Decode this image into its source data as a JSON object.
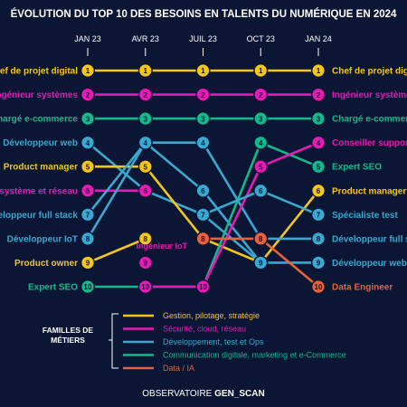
{
  "title": "ÉVOLUTION DU TOP 10 DES BESOINS EN TALENTS DU NUMÉRIQUE EN 2024",
  "footer": {
    "prefix": "OBSERVATOIRE ",
    "brand": "GEN_SCAN"
  },
  "legend": {
    "heading": [
      "FAMILLES DE",
      "MÉTIERS"
    ],
    "items": [
      {
        "family": "gestion",
        "label": "Gestion, pilotage, stratégie"
      },
      {
        "family": "securite",
        "label": "Sécurité, cloud, réseau"
      },
      {
        "family": "dev",
        "label": "Développement, test et Ops"
      },
      {
        "family": "comm",
        "label": "Communication digitale, marketing et e-Commerce"
      },
      {
        "family": "data",
        "label": "Data / IA"
      }
    ]
  },
  "colors": {
    "gestion": "#f5c518",
    "securite": "#e61bb5",
    "dev": "#3aa8d0",
    "comm": "#14b88c",
    "data": "#e8603c",
    "background": "#0a1633"
  },
  "chart_data": {
    "type": "line",
    "x": [
      "JAN 23",
      "AVR 23",
      "JUIL 23",
      "OCT 23",
      "JAN 24"
    ],
    "y_scale": "rank (1 at top, 10 at bottom)",
    "ylim": [
      1,
      10
    ],
    "series": [
      {
        "name": "Chef de projet digital",
        "family": "gestion",
        "values": [
          1,
          1,
          1,
          1,
          1
        ]
      },
      {
        "name": "Ingénieur systèmes",
        "family": "securite",
        "values": [
          2,
          2,
          2,
          2,
          2
        ]
      },
      {
        "name": "Chargé e-commerce",
        "family": "comm",
        "values": [
          3,
          3,
          3,
          3,
          3
        ]
      },
      {
        "name": "Développeur web",
        "family": "dev",
        "values": [
          4,
          6,
          7,
          9,
          9
        ]
      },
      {
        "name": "Product manager",
        "family": "gestion",
        "values": [
          5,
          5,
          8,
          9,
          6
        ]
      },
      {
        "name": "Sécurité système et réseau",
        "family": "securite",
        "values": [
          6,
          6,
          null,
          null,
          null
        ]
      },
      {
        "name": "Développeur full stack",
        "family": "dev",
        "values": [
          7,
          4,
          4,
          8,
          8
        ]
      },
      {
        "name": "Développeur IoT",
        "family": "dev",
        "values": [
          8,
          4,
          6,
          9,
          null
        ]
      },
      {
        "name": "Product owner",
        "family": "gestion",
        "values": [
          9,
          8,
          null,
          null,
          null
        ]
      },
      {
        "name": "Expert SEO",
        "family": "comm",
        "values": [
          10,
          10,
          10,
          4,
          5
        ]
      },
      {
        "name": "Ingénieur IoT",
        "family": "securite",
        "values": [
          null,
          9,
          null,
          null,
          null
        ]
      },
      {
        "name": "Conseiller support",
        "family": "securite",
        "values": [
          null,
          10,
          10,
          5,
          4
        ]
      },
      {
        "name": "Spécialiste test",
        "family": "dev",
        "values": [
          null,
          null,
          7,
          6,
          7
        ]
      },
      {
        "name": "Data Engineer",
        "family": "data",
        "values": [
          null,
          null,
          8,
          8,
          10
        ]
      }
    ],
    "left_labels": [
      {
        "rank": 1,
        "label": "Chef de projet digital",
        "family": "gestion"
      },
      {
        "rank": 2,
        "label": "Ingénieur systèmes",
        "family": "securite"
      },
      {
        "rank": 3,
        "label": "Chargé e-commerce",
        "family": "comm"
      },
      {
        "rank": 4,
        "label": "Développeur web",
        "family": "dev"
      },
      {
        "rank": 5,
        "label": "Product manager",
        "family": "gestion"
      },
      {
        "rank": 6,
        "label": "Sécurité système et réseau",
        "family": "securite"
      },
      {
        "rank": 7,
        "label": "Développeur full stack",
        "family": "dev"
      },
      {
        "rank": 8,
        "label": "Développeur IoT",
        "family": "dev"
      },
      {
        "rank": 9,
        "label": "Product owner",
        "family": "gestion"
      },
      {
        "rank": 10,
        "label": "Expert SEO",
        "family": "comm"
      }
    ],
    "right_labels": [
      {
        "rank": 1,
        "label": "Chef de projet digital",
        "family": "gestion"
      },
      {
        "rank": 2,
        "label": "Ingénieur systèmes",
        "family": "securite"
      },
      {
        "rank": 3,
        "label": "Chargé e-commerce",
        "family": "comm"
      },
      {
        "rank": 4,
        "label": "Conseiller support",
        "family": "securite"
      },
      {
        "rank": 5,
        "label": "Expert SEO",
        "family": "comm"
      },
      {
        "rank": 6,
        "label": "Product manager",
        "family": "gestion"
      },
      {
        "rank": 7,
        "label": "Spécialiste test",
        "family": "dev"
      },
      {
        "rank": 8,
        "label": "Développeur full stack",
        "family": "dev"
      },
      {
        "rank": 9,
        "label": "Développeur web",
        "family": "dev"
      },
      {
        "rank": 10,
        "label": "Data Engineer",
        "family": "data"
      }
    ],
    "annotations": [
      {
        "label": "Ingénieur IoT",
        "family": "securite",
        "near": "AVR 23"
      }
    ]
  }
}
